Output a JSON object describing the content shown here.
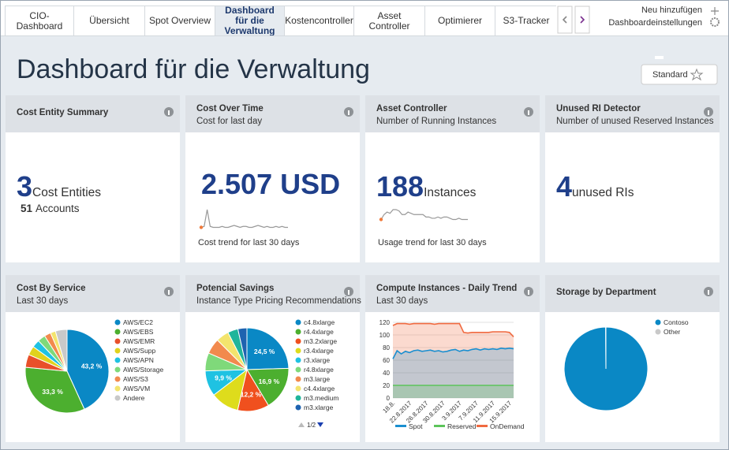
{
  "tabs": [
    "CIO-Dashboard",
    "Übersicht",
    "Spot Overview",
    "Dashboard für die Verwaltung",
    "Kostencontroller",
    "Asset Controller",
    "Optimierer",
    "S3-Tracker"
  ],
  "header_actions": {
    "add": "Neu hinzufügen",
    "settings": "Dashboardeinstellungen"
  },
  "title": "Dashboard für die Verwaltung",
  "view_button": "Standard",
  "widgets": [
    {
      "title": "Cost Entity Summary",
      "value": "3",
      "unit": "Cost Entities",
      "detail_value": "51",
      "detail_label": "Accounts"
    },
    {
      "title": "Cost Over Time",
      "subtitle": "Cost for last day",
      "value": "2.507 USD",
      "sparkline": [
        2,
        3,
        20,
        3,
        2,
        2,
        2,
        3,
        2,
        2,
        3,
        4,
        3,
        2,
        3,
        3,
        2,
        2,
        3,
        4,
        3,
        2,
        3,
        2,
        2,
        3,
        2,
        3,
        2,
        2
      ],
      "trend_label": "Cost trend for last 30 days"
    },
    {
      "title": "Asset Controller",
      "subtitle": "Number of Running Instances",
      "value": "188",
      "unit": "Instances",
      "sparkline": [
        8,
        12,
        14,
        13,
        16,
        16,
        15,
        12,
        12,
        14,
        13,
        12,
        12,
        12,
        12,
        10,
        10,
        9,
        9,
        10,
        9,
        10,
        10,
        9,
        8,
        8,
        9,
        8,
        8,
        8
      ],
      "trend_label": "Usage trend for last 30 days"
    },
    {
      "title": "Unused RI Detector",
      "subtitle": "Number of unused Reserved Instances",
      "value": "4",
      "unit": "unused RIs"
    }
  ],
  "charts": [
    {
      "type": "pie",
      "title": "Cost By Service",
      "subtitle": "Last 30 days",
      "categories": [
        "AWS/EC2",
        "AWS/EBS",
        "AWS/EMR",
        "AWS/Supp",
        "AWS/APN",
        "AWS/Storage",
        "AWS/S3",
        "AWS/VM",
        "Andere"
      ],
      "values": [
        43.2,
        33.3,
        5,
        3.5,
        3,
        3,
        2.5,
        2,
        4.5
      ],
      "value_labels": [
        "43,2 %",
        "33,3 %",
        null,
        null,
        null,
        null,
        null,
        null,
        null
      ],
      "colors": [
        "#0a88c5",
        "#4caf2f",
        "#e8502a",
        "#e0d21d",
        "#1fc2e2",
        "#7fd97a",
        "#f28a4d",
        "#f3e46d",
        "#c9c9c9"
      ]
    },
    {
      "type": "pie",
      "title": "Potencial Savings",
      "subtitle": "Instance Type Pricing Recommendations",
      "categories": [
        "c4.8xlarge",
        "r4.4xlarge",
        "m3.2xlarge",
        "r3.4xlarge",
        "r3.xlarge",
        "r4.8xlarge",
        "m3.large",
        "c4.4xlarge",
        "m3.medium",
        "m3.xlarge"
      ],
      "values": [
        24.5,
        16.9,
        12.2,
        11,
        9.9,
        7,
        6,
        5,
        4,
        3.5
      ],
      "value_labels": [
        "24,5 %",
        "16,9 %",
        "12,2 %",
        null,
        "9,9 %",
        null,
        null,
        null,
        null,
        null
      ],
      "colors": [
        "#0a88c5",
        "#4caf2f",
        "#f0501e",
        "#dedc1c",
        "#1fc2e2",
        "#7fd97a",
        "#f28a4d",
        "#f3e46d",
        "#1fb59b",
        "#1e63b0"
      ],
      "pager": "1/2"
    },
    {
      "type": "area",
      "title": "Compute Instances - Daily Trend",
      "subtitle": "Last 30 days",
      "categories": [
        "18.8.",
        null,
        null,
        null,
        "22.8.2017",
        null,
        null,
        null,
        "26.8.2017",
        null,
        null,
        null,
        "30.8.2017",
        null,
        null,
        null,
        "3.9.2017",
        null,
        null,
        null,
        "7.9.2017",
        null,
        null,
        null,
        "11.9.2017",
        null,
        null,
        null,
        "15.9.2017",
        null
      ],
      "ylim": [
        0,
        120
      ],
      "yticks": [
        0,
        20,
        40,
        60,
        80,
        100,
        120
      ],
      "grid": true,
      "series": [
        {
          "name": "Spot",
          "color": "#1a8fd0",
          "values": [
            62,
            75,
            70,
            74,
            72,
            75,
            76,
            74,
            75,
            76,
            74,
            75,
            73,
            74,
            76,
            77,
            74,
            76,
            75,
            77,
            78,
            76,
            78,
            77,
            78,
            77,
            79,
            78,
            79,
            78
          ]
        },
        {
          "name": "Reserved",
          "color": "#5cc45a",
          "values": [
            20,
            20,
            20,
            20,
            20,
            20,
            20,
            20,
            20,
            20,
            20,
            20,
            20,
            20,
            20,
            20,
            20,
            20,
            20,
            20,
            20,
            20,
            20,
            20,
            20,
            20,
            20,
            20,
            20,
            20
          ]
        },
        {
          "name": "OnDemand",
          "color": "#f06a40",
          "values": [
            115,
            118,
            118,
            118,
            117,
            118,
            118,
            118,
            118,
            118,
            117,
            118,
            118,
            118,
            118,
            118,
            118,
            104,
            103,
            104,
            104,
            104,
            104,
            104,
            105,
            105,
            105,
            105,
            104,
            97
          ]
        }
      ]
    },
    {
      "type": "pie",
      "title": "Storage by Department",
      "categories": [
        "Contoso",
        "Other"
      ],
      "values": [
        99.9,
        0.1
      ],
      "value_labels": [
        "99,9 %",
        null
      ],
      "colors": [
        "#0a88c5",
        "#c9c9c9"
      ]
    }
  ]
}
